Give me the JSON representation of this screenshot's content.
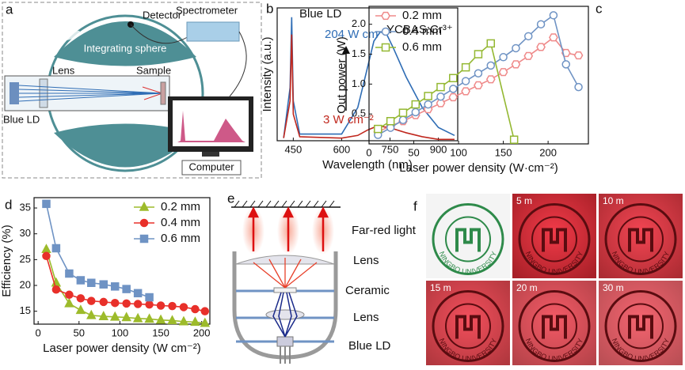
{
  "panels": {
    "a": {
      "label": "a",
      "detector": "Detector",
      "spectrometer": "Spectrometer",
      "sphere": "Integrating sphere",
      "lens": "Lens",
      "sample": "Sample",
      "source": "Blue LD",
      "computer": "Computer"
    },
    "e": {
      "label": "e",
      "light": "Far-red light",
      "lens_top": "Lens",
      "ceramic": "Ceramic",
      "lens_bottom": "Lens",
      "source": "Blue LD"
    },
    "f": {
      "label": "f",
      "logo_text": "NINGBO UNIVERSITY",
      "tiles": [
        null,
        "5 m",
        "10 m",
        "15 m",
        "20 m",
        "30 m"
      ]
    }
  },
  "chart_data": [
    {
      "type": "line",
      "label": "b",
      "xlabel": "Wavelength (nm)",
      "ylabel": "Intensity (a.u.)",
      "xlim": [
        400,
        960
      ],
      "xticks": [
        450,
        600,
        750,
        900
      ],
      "ylim": [
        0,
        1
      ],
      "annotations": [
        "Blue LD",
        "YCBAS:Cr³⁺"
      ],
      "series": [
        {
          "name": "204 W cm⁻²",
          "color": "#2f6db5",
          "x": [
            420,
            440,
            445,
            450,
            470,
            600,
            650,
            680,
            700,
            720,
            740,
            760,
            800,
            850,
            900,
            950
          ],
          "values": [
            0.02,
            0.4,
            0.93,
            0.3,
            0.05,
            0.05,
            0.25,
            0.55,
            0.75,
            0.82,
            0.8,
            0.7,
            0.48,
            0.25,
            0.1,
            0.04
          ]
        },
        {
          "name": "3 W cm⁻²",
          "color": "#c0281e",
          "x": [
            420,
            440,
            445,
            450,
            470,
            600,
            650,
            680,
            700,
            720,
            740,
            760,
            800,
            850,
            900,
            950
          ],
          "values": [
            0.02,
            0.3,
            0.8,
            0.2,
            0.03,
            0.02,
            0.04,
            0.08,
            0.1,
            0.11,
            0.1,
            0.09,
            0.06,
            0.03,
            0.01,
            0.01
          ]
        }
      ]
    },
    {
      "type": "line",
      "label": "c",
      "xlabel": "Laser power density (W·cm⁻²)",
      "ylabel": "Out power (W)",
      "xlim": [
        0,
        245
      ],
      "xticks": [
        0,
        50,
        100,
        150,
        200
      ],
      "ylim": [
        0,
        2.3
      ],
      "yticks": [
        0.5,
        {
          "value": 1,
          "label": "1.0"
        },
        1.5,
        {
          "value": 2,
          "label": "2.0"
        }
      ],
      "legend": "upper left",
      "series": [
        {
          "name": "0.2 mm",
          "color": "#ef8a8a",
          "marker": "hexagon",
          "filled": false,
          "x": [
            10,
            24,
            38,
            52,
            66,
            80,
            94,
            108,
            122,
            136,
            150,
            164,
            178,
            192,
            206,
            220,
            234
          ],
          "values": [
            0.2,
            0.3,
            0.38,
            0.48,
            0.58,
            0.68,
            0.78,
            0.88,
            0.98,
            1.08,
            1.2,
            1.33,
            1.47,
            1.62,
            1.78,
            1.52,
            1.48
          ]
        },
        {
          "name": "0.4 mm",
          "color": "#6f93c4",
          "marker": "circle",
          "filled": false,
          "x": [
            10,
            24,
            38,
            52,
            66,
            80,
            94,
            108,
            122,
            136,
            150,
            164,
            178,
            192,
            206,
            220,
            234
          ],
          "values": [
            0.15,
            0.27,
            0.4,
            0.53,
            0.66,
            0.79,
            0.92,
            1.05,
            1.18,
            1.31,
            1.45,
            1.6,
            1.8,
            2.0,
            2.15,
            1.33,
            0.95
          ]
        },
        {
          "name": "0.6 mm",
          "color": "#94b832",
          "marker": "square",
          "filled": false,
          "x": [
            10,
            24,
            38,
            52,
            66,
            80,
            94,
            108,
            122,
            136,
            162
          ],
          "values": [
            0.25,
            0.38,
            0.52,
            0.66,
            0.8,
            0.95,
            1.1,
            1.28,
            1.5,
            1.68,
            0.07
          ]
        }
      ]
    },
    {
      "type": "line",
      "label": "d",
      "xlabel": "Laser power density (W cm⁻²)",
      "ylabel": "Efficiency (%)",
      "xlim": [
        -5,
        210
      ],
      "xticks": [
        0,
        50,
        100,
        150,
        200
      ],
      "ylim": [
        12.5,
        37
      ],
      "yticks": [
        15,
        20,
        25,
        30,
        35
      ],
      "legend": "upper right",
      "series": [
        {
          "name": "0.2 mm",
          "color": "#9dbb2b",
          "marker": "triangle",
          "filled": true,
          "x": [
            10,
            22,
            38,
            52,
            65,
            80,
            94,
            108,
            122,
            136,
            150,
            164,
            178,
            192,
            204
          ],
          "values": [
            27,
            20.5,
            16.5,
            15.2,
            14.2,
            14,
            13.9,
            13.8,
            13.6,
            13.5,
            13.3,
            13.2,
            13,
            12.9,
            12.7
          ]
        },
        {
          "name": "0.4 mm",
          "color": "#e8302a",
          "marker": "circle",
          "filled": true,
          "x": [
            10,
            22,
            38,
            52,
            65,
            80,
            94,
            108,
            122,
            136,
            150,
            164,
            178,
            192,
            204
          ],
          "values": [
            25.7,
            19.2,
            18.2,
            17.5,
            17,
            16.8,
            16.6,
            16.5,
            16.4,
            16.3,
            16.1,
            16,
            15.8,
            15.4,
            15
          ]
        },
        {
          "name": "0.6 mm",
          "color": "#6f93c4",
          "marker": "square",
          "filled": true,
          "x": [
            10,
            22,
            38,
            52,
            65,
            80,
            94,
            108,
            122,
            136
          ],
          "values": [
            35.8,
            27.2,
            22.3,
            21,
            20.5,
            20.2,
            19.8,
            19.3,
            18.5,
            17.7
          ]
        }
      ]
    }
  ]
}
